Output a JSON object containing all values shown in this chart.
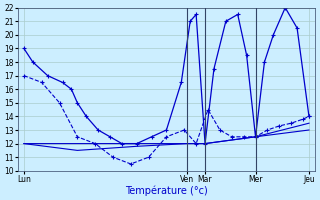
{
  "xlabel": "Température (°c)",
  "xlim": [
    0,
    100
  ],
  "ylim": [
    10,
    22
  ],
  "yticks": [
    10,
    11,
    12,
    13,
    14,
    15,
    16,
    17,
    18,
    19,
    20,
    21,
    22
  ],
  "xtick_positions": [
    2,
    57,
    63,
    80,
    98
  ],
  "xtick_labels": [
    "Lun",
    "Ven",
    "Mar",
    "Mer",
    "Jeu"
  ],
  "vlines": [
    57,
    63,
    80
  ],
  "background_color": "#cceeff",
  "grid_color": "#aacccc",
  "line_color": "#0000cc",
  "series1_x": [
    2,
    5,
    10,
    15,
    18,
    20,
    23,
    27,
    31,
    35,
    40,
    45,
    50,
    55,
    58,
    60,
    63,
    66,
    70,
    74,
    77,
    80,
    83,
    86,
    90,
    94,
    98
  ],
  "series1_y": [
    19,
    18,
    17,
    16.5,
    16,
    15,
    14,
    13,
    12.5,
    12,
    12,
    12.5,
    13,
    16.5,
    21,
    21.5,
    12,
    17.5,
    21,
    21.5,
    18.5,
    12.5,
    18,
    20,
    22,
    20.5,
    14
  ],
  "series2_x": [
    2,
    8,
    14,
    20,
    26,
    32,
    38,
    44,
    50,
    56,
    60,
    64,
    68,
    72,
    76,
    80,
    84,
    88,
    92,
    96,
    98
  ],
  "series2_y": [
    17,
    16.5,
    15,
    12.5,
    12,
    11,
    10.5,
    11,
    12.5,
    13,
    12,
    14.5,
    13,
    12.5,
    12.5,
    12.5,
    13,
    13.3,
    13.5,
    13.8,
    14
  ],
  "series3_x": [
    2,
    20,
    40,
    57,
    63,
    80,
    98
  ],
  "series3_y": [
    12,
    12,
    12,
    12,
    12,
    12.5,
    13
  ],
  "series4_x": [
    2,
    20,
    40,
    57,
    63,
    80,
    98
  ],
  "series4_y": [
    12,
    11.5,
    11.8,
    12,
    12,
    12.5,
    13.5
  ]
}
